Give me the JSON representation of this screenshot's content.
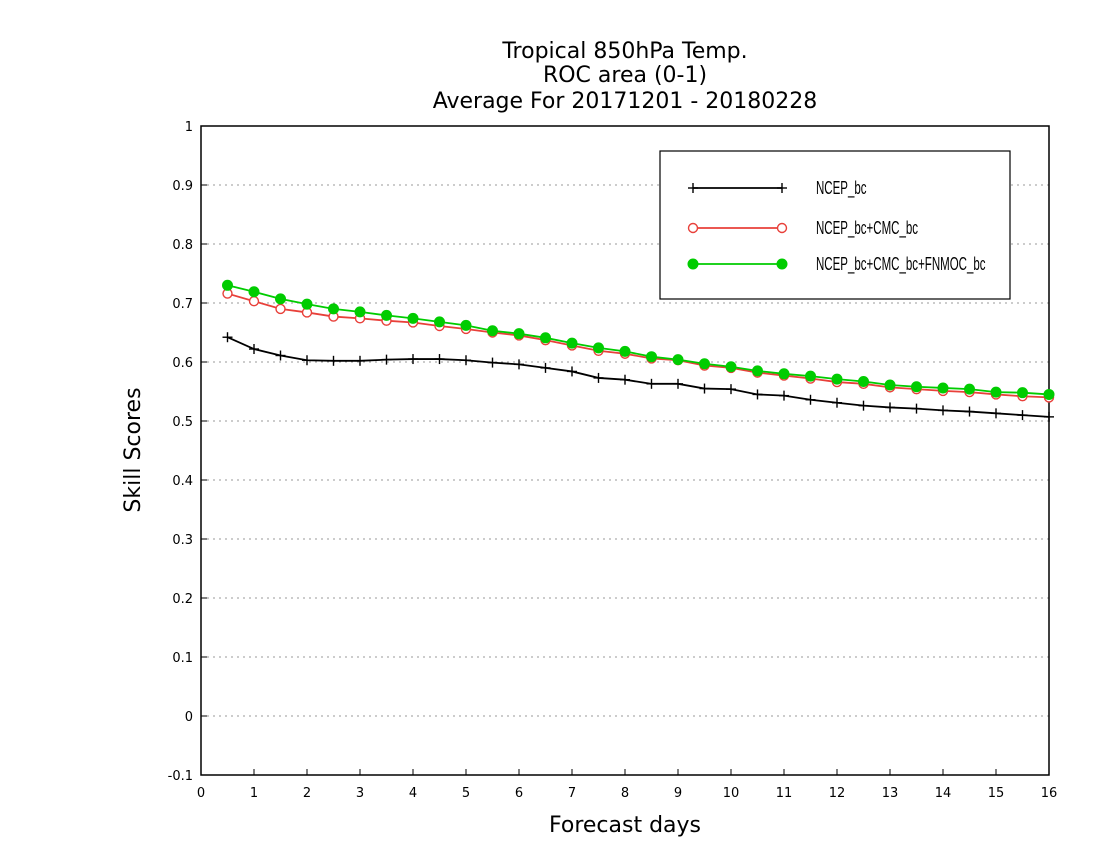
{
  "chart_data": {
    "type": "line",
    "title_lines": [
      "Tropical 850hPa Temp.",
      "ROC area (0-1)",
      "Average For 20171201 - 20180228"
    ],
    "xlabel": "Forecast days",
    "ylabel": "Skill Scores",
    "xlim": [
      0,
      16
    ],
    "ylim": [
      -0.1,
      1
    ],
    "x_ticks": [
      "0",
      "1",
      "2",
      "3",
      "4",
      "5",
      "6",
      "7",
      "8",
      "9",
      "10",
      "11",
      "12",
      "13",
      "14",
      "15",
      "16"
    ],
    "y_ticks": [
      "-0.1",
      "0",
      "0.1",
      "0.2",
      "0.3",
      "0.4",
      "0.5",
      "0.6",
      "0.7",
      "0.8",
      "0.9",
      "1"
    ],
    "grid": "horizontal dotted",
    "legend_position": "top-right",
    "x": [
      0.5,
      1,
      1.5,
      2,
      2.5,
      3,
      3.5,
      4,
      4.5,
      5,
      5.5,
      6,
      6.5,
      7,
      7.5,
      8,
      8.5,
      9,
      9.5,
      10,
      10.5,
      11,
      11.5,
      12,
      12.5,
      13,
      13.5,
      14,
      14.5,
      15,
      15.5,
      16
    ],
    "series": [
      {
        "name": "NCEP_bc",
        "color": "#000000",
        "marker": "plus",
        "values": [
          0.642,
          0.622,
          0.611,
          0.603,
          0.602,
          0.602,
          0.604,
          0.605,
          0.605,
          0.603,
          0.599,
          0.596,
          0.59,
          0.584,
          0.573,
          0.57,
          0.563,
          0.563,
          0.555,
          0.554,
          0.545,
          0.543,
          0.536,
          0.531,
          0.526,
          0.523,
          0.521,
          0.518,
          0.516,
          0.513,
          0.51,
          0.507
        ]
      },
      {
        "name": "NCEP_bc+CMC_bc",
        "color": "#e8403a",
        "marker": "open-circle",
        "values": [
          0.716,
          0.703,
          0.69,
          0.684,
          0.677,
          0.674,
          0.67,
          0.667,
          0.661,
          0.656,
          0.65,
          0.645,
          0.637,
          0.628,
          0.619,
          0.614,
          0.606,
          0.603,
          0.594,
          0.59,
          0.582,
          0.577,
          0.572,
          0.566,
          0.563,
          0.557,
          0.554,
          0.551,
          0.549,
          0.545,
          0.542,
          0.54
        ]
      },
      {
        "name": "NCEP_bc+CMC_bc+FNMOC_bc",
        "color": "#00cc00",
        "marker": "filled-circle",
        "values": [
          0.73,
          0.719,
          0.707,
          0.698,
          0.69,
          0.685,
          0.679,
          0.674,
          0.668,
          0.662,
          0.653,
          0.648,
          0.641,
          0.632,
          0.624,
          0.618,
          0.609,
          0.604,
          0.597,
          0.592,
          0.585,
          0.58,
          0.576,
          0.571,
          0.567,
          0.561,
          0.558,
          0.556,
          0.554,
          0.549,
          0.548,
          0.545
        ]
      }
    ]
  }
}
